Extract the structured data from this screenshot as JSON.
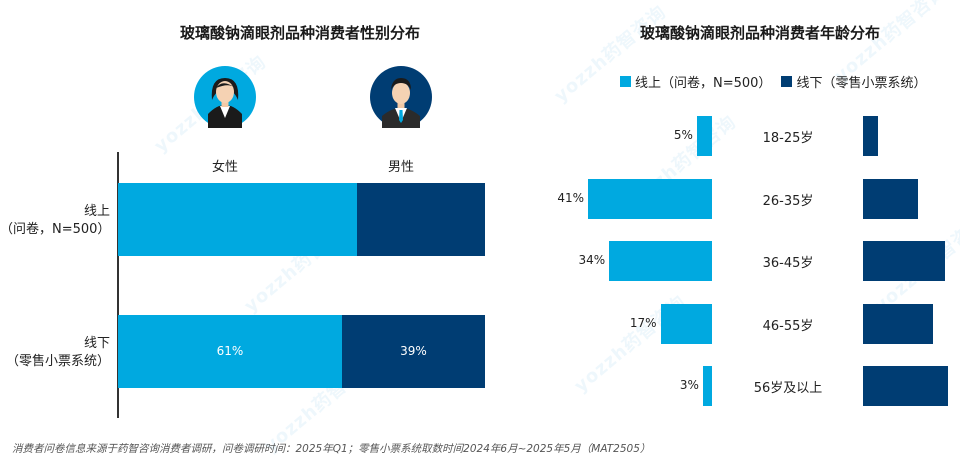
{
  "colors": {
    "online": "#00a9e0",
    "offline": "#003d73"
  },
  "watermark": "yozzh药智咨询",
  "chart_data": [
    {
      "type": "bar",
      "orientation": "horizontal-stacked-100",
      "title": "玻璃酸钠滴眼剂品种消费者性别分布",
      "series_names": [
        "女性",
        "男性"
      ],
      "categories": [
        {
          "line1": "线上",
          "line2": "（问卷，N=500）",
          "female": 65,
          "male": 35,
          "female_label": "",
          "male_label": ""
        },
        {
          "line1": "线下",
          "line2": "（零售小票系统）",
          "female": 61,
          "male": 39,
          "female_label": "61%",
          "male_label": "39%"
        }
      ]
    },
    {
      "type": "bar",
      "orientation": "butterfly",
      "title": "玻璃酸钠滴眼剂品种消费者年龄分布",
      "legend": {
        "online": "线上（问卷，N=500）",
        "offline": "线下（零售小票系统）"
      },
      "categories": [
        "18-25岁",
        "26-35岁",
        "36-45岁",
        "46-55岁",
        "56岁及以上"
      ],
      "online_values": [
        5,
        41,
        34,
        17,
        3
      ],
      "online_labels": [
        "5%",
        "41%",
        "34%",
        "17%",
        "3%"
      ],
      "offline_values": [
        5,
        18,
        27,
        23,
        28
      ]
    }
  ],
  "footnote": "消费者问卷信息来源于药智咨询消费者调研，问卷调研时间：2025年Q1；零售小票系统取数时间2024年6月~2025年5月（MAT2505）"
}
